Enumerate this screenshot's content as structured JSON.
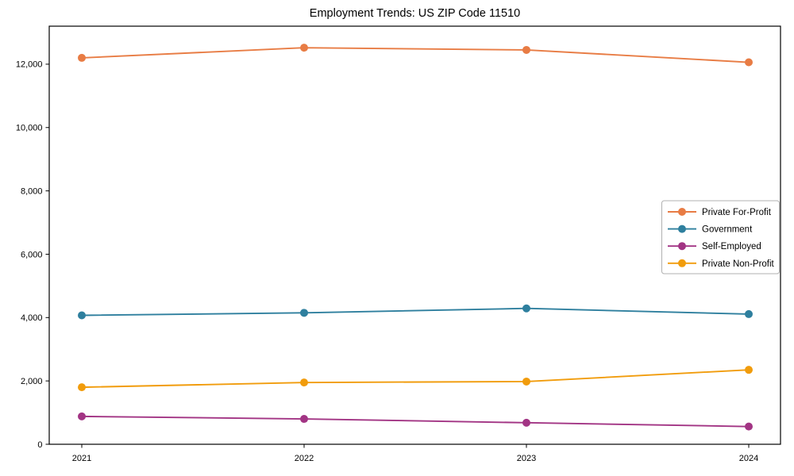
{
  "chart_data": {
    "type": "line",
    "title": "Employment Trends: US ZIP Code 11510",
    "xlabel": "",
    "ylabel": "",
    "categories": [
      "2021",
      "2022",
      "2023",
      "2024"
    ],
    "series": [
      {
        "name": "Private For-Profit",
        "color": "#e87c44",
        "values": [
          12200,
          12520,
          12450,
          12060
        ]
      },
      {
        "name": "Government",
        "color": "#2e7f9e",
        "values": [
          4070,
          4150,
          4290,
          4110
        ]
      },
      {
        "name": "Self-Employed",
        "color": "#a23484",
        "values": [
          880,
          800,
          680,
          560
        ]
      },
      {
        "name": "Private Non-Profit",
        "color": "#f19c0c",
        "values": [
          1800,
          1950,
          1980,
          2350
        ]
      }
    ],
    "ylim": [
      0,
      13200
    ],
    "yticks": [
      0,
      2000,
      4000,
      6000,
      8000,
      10000,
      12000
    ],
    "ytick_labels": [
      "0",
      "2,000",
      "4,000",
      "6,000",
      "8,000",
      "10,000",
      "12,000"
    ],
    "grid": false,
    "legend_position": "center right",
    "marker": "circle",
    "frame_color": "#000000",
    "legend_border_color": "#b0b0b0"
  }
}
